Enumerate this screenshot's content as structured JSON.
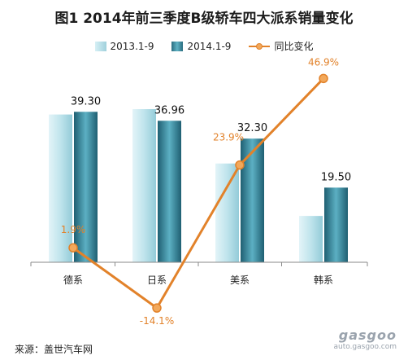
{
  "title": "图1  2014年前三季度B级轿车四大派系销量变化",
  "legend": {
    "series_a": "2013.1-9",
    "series_b": "2014.1-9",
    "series_c": "同比变化"
  },
  "source": "来源：盖世汽车网",
  "watermark": {
    "logo": "gasgoo",
    "url": "auto.gasgoo.com"
  },
  "colors": {
    "bar_2013": "#a9d9e4",
    "bar_2014": "#2f7d91",
    "line": "#e2822a"
  },
  "chart_data": {
    "type": "bar",
    "categories": [
      "德系",
      "日系",
      "美系",
      "韩系"
    ],
    "series": [
      {
        "name": "2013.1-9",
        "type": "bar",
        "values": [
          38.6,
          40.0,
          25.8,
          12.1
        ],
        "labels": [
          null,
          null,
          null,
          null
        ]
      },
      {
        "name": "2014.1-9",
        "type": "bar",
        "values": [
          39.3,
          36.96,
          32.3,
          19.5
        ],
        "labels": [
          "39.30",
          "36.96",
          "32.30",
          "19.50"
        ]
      },
      {
        "name": "同比变化",
        "type": "line",
        "values": [
          1.9,
          -14.1,
          23.9,
          46.9
        ],
        "labels": [
          "1.9%",
          "-14.1%",
          "23.9%",
          "46.9%"
        ]
      }
    ],
    "grid": false,
    "legend_position": "top"
  }
}
